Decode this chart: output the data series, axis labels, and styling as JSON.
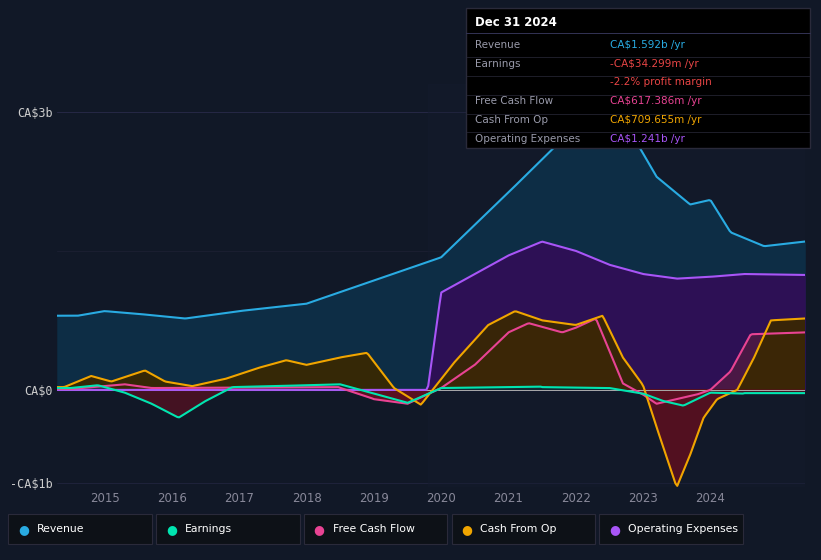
{
  "background_color": "#111827",
  "plot_bg_color": "#111827",
  "info_box": {
    "date": "Dec 31 2024",
    "rows": [
      {
        "label": "Revenue",
        "value": "CA$1.592b /yr",
        "value_color": "#29abe2"
      },
      {
        "label": "Earnings",
        "value": "-CA$34.299m /yr",
        "value_color": "#e84545"
      },
      {
        "label": "",
        "value": "-2.2% profit margin",
        "value_color": "#e84545"
      },
      {
        "label": "Free Cash Flow",
        "value": "CA$617.386m /yr",
        "value_color": "#e84393"
      },
      {
        "label": "Cash From Op",
        "value": "CA$709.655m /yr",
        "value_color": "#f0a500"
      },
      {
        "label": "Operating Expenses",
        "value": "CA$1.241b /yr",
        "value_color": "#a855f7"
      }
    ]
  },
  "ylim": [
    -1.05,
    3.3
  ],
  "series": {
    "revenue": {
      "color": "#29abe2",
      "fill_color": "#0d2d45",
      "label": "Revenue"
    },
    "earnings": {
      "color": "#00e5b0",
      "fill_pos": "#0d2d3a",
      "fill_neg": "#5a1020",
      "label": "Earnings"
    },
    "free_cash_flow": {
      "color": "#e84393",
      "fill_pos": "#4a1040",
      "fill_neg": "#5a1020",
      "label": "Free Cash Flow"
    },
    "cash_from_op": {
      "color": "#f0a500",
      "fill_pos": "#3a2800",
      "fill_neg": "#5a1a10",
      "label": "Cash From Op"
    },
    "operating_expenses": {
      "color": "#a855f7",
      "fill_color": "#2d1055",
      "label": "Operating Expenses"
    }
  },
  "legend": [
    {
      "label": "Revenue",
      "color": "#29abe2"
    },
    {
      "label": "Earnings",
      "color": "#00e5b0"
    },
    {
      "label": "Free Cash Flow",
      "color": "#e84393"
    },
    {
      "label": "Cash From Op",
      "color": "#f0a500"
    },
    {
      "label": "Operating Expenses",
      "color": "#a855f7"
    }
  ],
  "xticks": [
    2015,
    2016,
    2017,
    2018,
    2019,
    2020,
    2021,
    2022,
    2023,
    2024
  ],
  "ytick_positions": [
    -1.0,
    0.0,
    3.0
  ],
  "ytick_labels": [
    "-CA$1b",
    "CA$0",
    "CA$3b"
  ]
}
